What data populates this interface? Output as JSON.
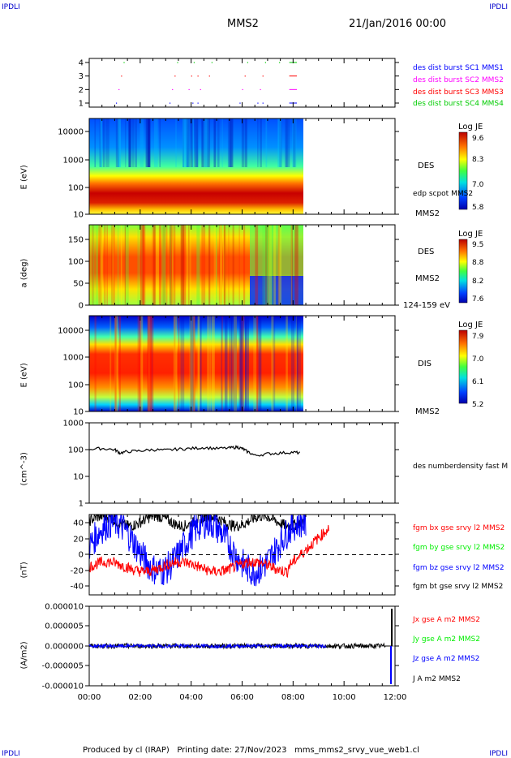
{
  "header": {
    "corner_left": "IPDLI",
    "corner_right": "IPDLI",
    "title": "MMS2",
    "date": "21/Jan/2016 00:00"
  },
  "footer": {
    "text": "Produced by cl (IRAP)   Printing date: 27/Nov/2023   mms_mms2_srvy_vue_web1.cl",
    "corner_left": "IPDLI",
    "corner_right": "IPDLI"
  },
  "colors": {
    "sc1": "#0000ff",
    "sc2": "#ff00ff",
    "sc3": "#ff0000",
    "sc4": "#00cc00",
    "bx": "#ff0000",
    "by": "#00ee00",
    "bz": "#0000ff",
    "bt": "#000000"
  },
  "chart_data": [
    {
      "type": "scatter",
      "panel": "availability",
      "y_ticks": [
        "1",
        "2",
        "3",
        "4"
      ],
      "legend": [
        "des dist burst SC1 MMS1",
        "des dist burst SC2 MMS2",
        "des dist burst SC3 MMS3",
        "des dist burst SC4 MMS4"
      ]
    },
    {
      "type": "heatmap",
      "panel": "des-energy",
      "ylabel": "E (eV)",
      "y_scale": "log",
      "y_ticks": [
        "10",
        "100",
        "1000",
        "10000"
      ],
      "colorbar": {
        "title": "Log JE",
        "ticks": [
          "9.6",
          "8.3",
          "7.0",
          "5.8"
        ]
      },
      "side_labels": [
        "DES",
        "edp scpot MMS2",
        "MMS2"
      ],
      "x_range": [
        "00:00",
        "08:25"
      ]
    },
    {
      "type": "heatmap",
      "panel": "des-pitch",
      "ylabel": "a (deg)",
      "y_ticks": [
        "0",
        "50",
        "100",
        "150"
      ],
      "colorbar": {
        "title": "Log JE",
        "ticks": [
          "9.5",
          "8.8",
          "8.2",
          "7.6"
        ]
      },
      "side_labels": [
        "DES",
        "MMS2",
        "124-159 eV"
      ]
    },
    {
      "type": "heatmap",
      "panel": "dis-energy",
      "ylabel": "E (eV)",
      "y_scale": "log",
      "y_ticks": [
        "10",
        "100",
        "1000",
        "10000"
      ],
      "colorbar": {
        "title": "Log JE",
        "ticks": [
          "7.9",
          "7.0",
          "6.1",
          "5.2"
        ]
      },
      "side_labels": [
        "DIS",
        "MMS2"
      ]
    },
    {
      "type": "line",
      "panel": "density",
      "ylabel": "(cm^-3)",
      "y_scale": "log",
      "y_ticks": [
        "1",
        "10",
        "100",
        "1000"
      ],
      "legend": [
        "des numberdensity fast M"
      ],
      "x": [
        0.0,
        0.5,
        1.0,
        1.2,
        1.5,
        2.0,
        2.5,
        3.0,
        3.5,
        4.0,
        4.5,
        5.0,
        5.5,
        5.8,
        6.0,
        6.2,
        6.5,
        7.0,
        7.5,
        8.0,
        8.3
      ],
      "values": [
        105,
        110,
        100,
        75,
        85,
        90,
        100,
        95,
        105,
        110,
        120,
        110,
        115,
        125,
        110,
        85,
        60,
        70,
        75,
        80,
        75
      ]
    },
    {
      "type": "line",
      "panel": "fgm",
      "ylabel": "(nT)",
      "y_ticks": [
        "-40",
        "-20",
        "0",
        "20",
        "40"
      ],
      "ylim": [
        -50,
        50
      ],
      "legend": [
        "fgm bx gse srvy l2 MMS2",
        "fgm by gse srvy l2 MMS2",
        "fgm bz gse srvy l2 MMS2",
        "fgm bt gse srvy l2 MMS2"
      ]
    },
    {
      "type": "line",
      "panel": "current",
      "ylabel": "(A/m2)",
      "y_ticks": [
        "-0.000010",
        "-0.000005",
        "0.000000",
        "0.000005",
        "0.000010"
      ],
      "legend": [
        "Jx gse A m2 MMS2",
        "Jy gse A m2 MMS2",
        "Jz gse A m2 MMS2",
        "J A m2 MMS2"
      ],
      "x_ticks": [
        "00:00",
        "02:00",
        "04:00",
        "06:00",
        "08:00",
        "10:00",
        "12:00"
      ]
    }
  ]
}
